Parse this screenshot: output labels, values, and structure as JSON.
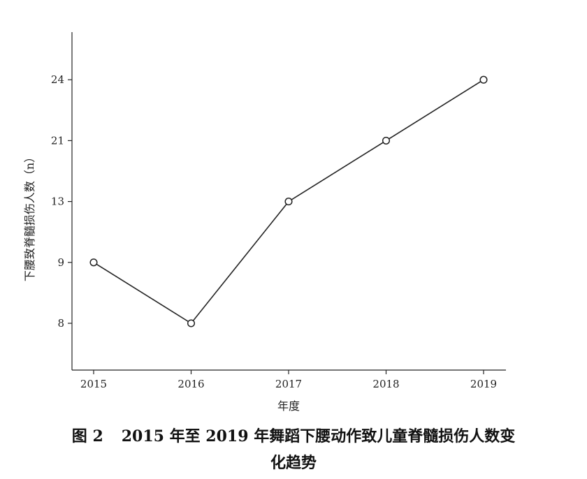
{
  "chart_data": {
    "type": "line",
    "categories": [
      "2015",
      "2016",
      "2017",
      "2018",
      "2019"
    ],
    "y_tick_labels": [
      "8",
      "9",
      "13",
      "21",
      "24"
    ],
    "values": [
      9,
      8,
      13,
      21,
      24
    ],
    "xlabel": "年度",
    "ylabel": "下腰致脊髓损伤人数（n）",
    "marker": "open-circle",
    "line_color": "#222222",
    "grid": false,
    "y_axis_note": "categorical spacing: ticks evenly spaced"
  },
  "caption": {
    "figure_number": "图 2",
    "text_line1": "2015 年至 2019 年舞蹈下腰动作致儿童脊髓损伤人数变",
    "text_line2": "化趋势"
  }
}
